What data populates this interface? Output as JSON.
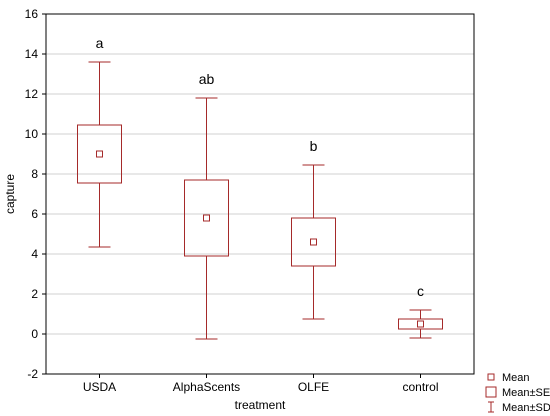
{
  "chart_data": {
    "type": "boxplot",
    "xlabel": "treatment",
    "ylabel": "capture",
    "ylim": [
      -2,
      16
    ],
    "yticks": [
      -2,
      0,
      2,
      4,
      6,
      8,
      10,
      12,
      14,
      16
    ],
    "grid": true,
    "legend_position": "bottom-right",
    "colors": {
      "series": "#a52a2a",
      "grid": "#d0d0d0",
      "frame": "#000000"
    },
    "legend": [
      {
        "label": "Mean",
        "marker": "small-square"
      },
      {
        "label": "Mean±SE",
        "marker": "box"
      },
      {
        "label": "Mean±SD",
        "marker": "whisker"
      }
    ],
    "groups": [
      {
        "category": "USDA",
        "mean": 9.0,
        "se_low": 7.55,
        "se_high": 10.45,
        "sd_low": 4.35,
        "sd_high": 13.6,
        "sig": "a"
      },
      {
        "category": "AlphaScents",
        "mean": 5.8,
        "se_low": 3.9,
        "se_high": 7.7,
        "sd_low": -0.25,
        "sd_high": 11.8,
        "sig": "ab"
      },
      {
        "category": "OLFE",
        "mean": 4.6,
        "se_low": 3.4,
        "se_high": 5.8,
        "sd_low": 0.75,
        "sd_high": 8.45,
        "sig": "b"
      },
      {
        "category": "control",
        "mean": 0.5,
        "se_low": 0.25,
        "se_high": 0.75,
        "sd_low": -0.2,
        "sd_high": 1.2,
        "sig": "c"
      }
    ]
  }
}
